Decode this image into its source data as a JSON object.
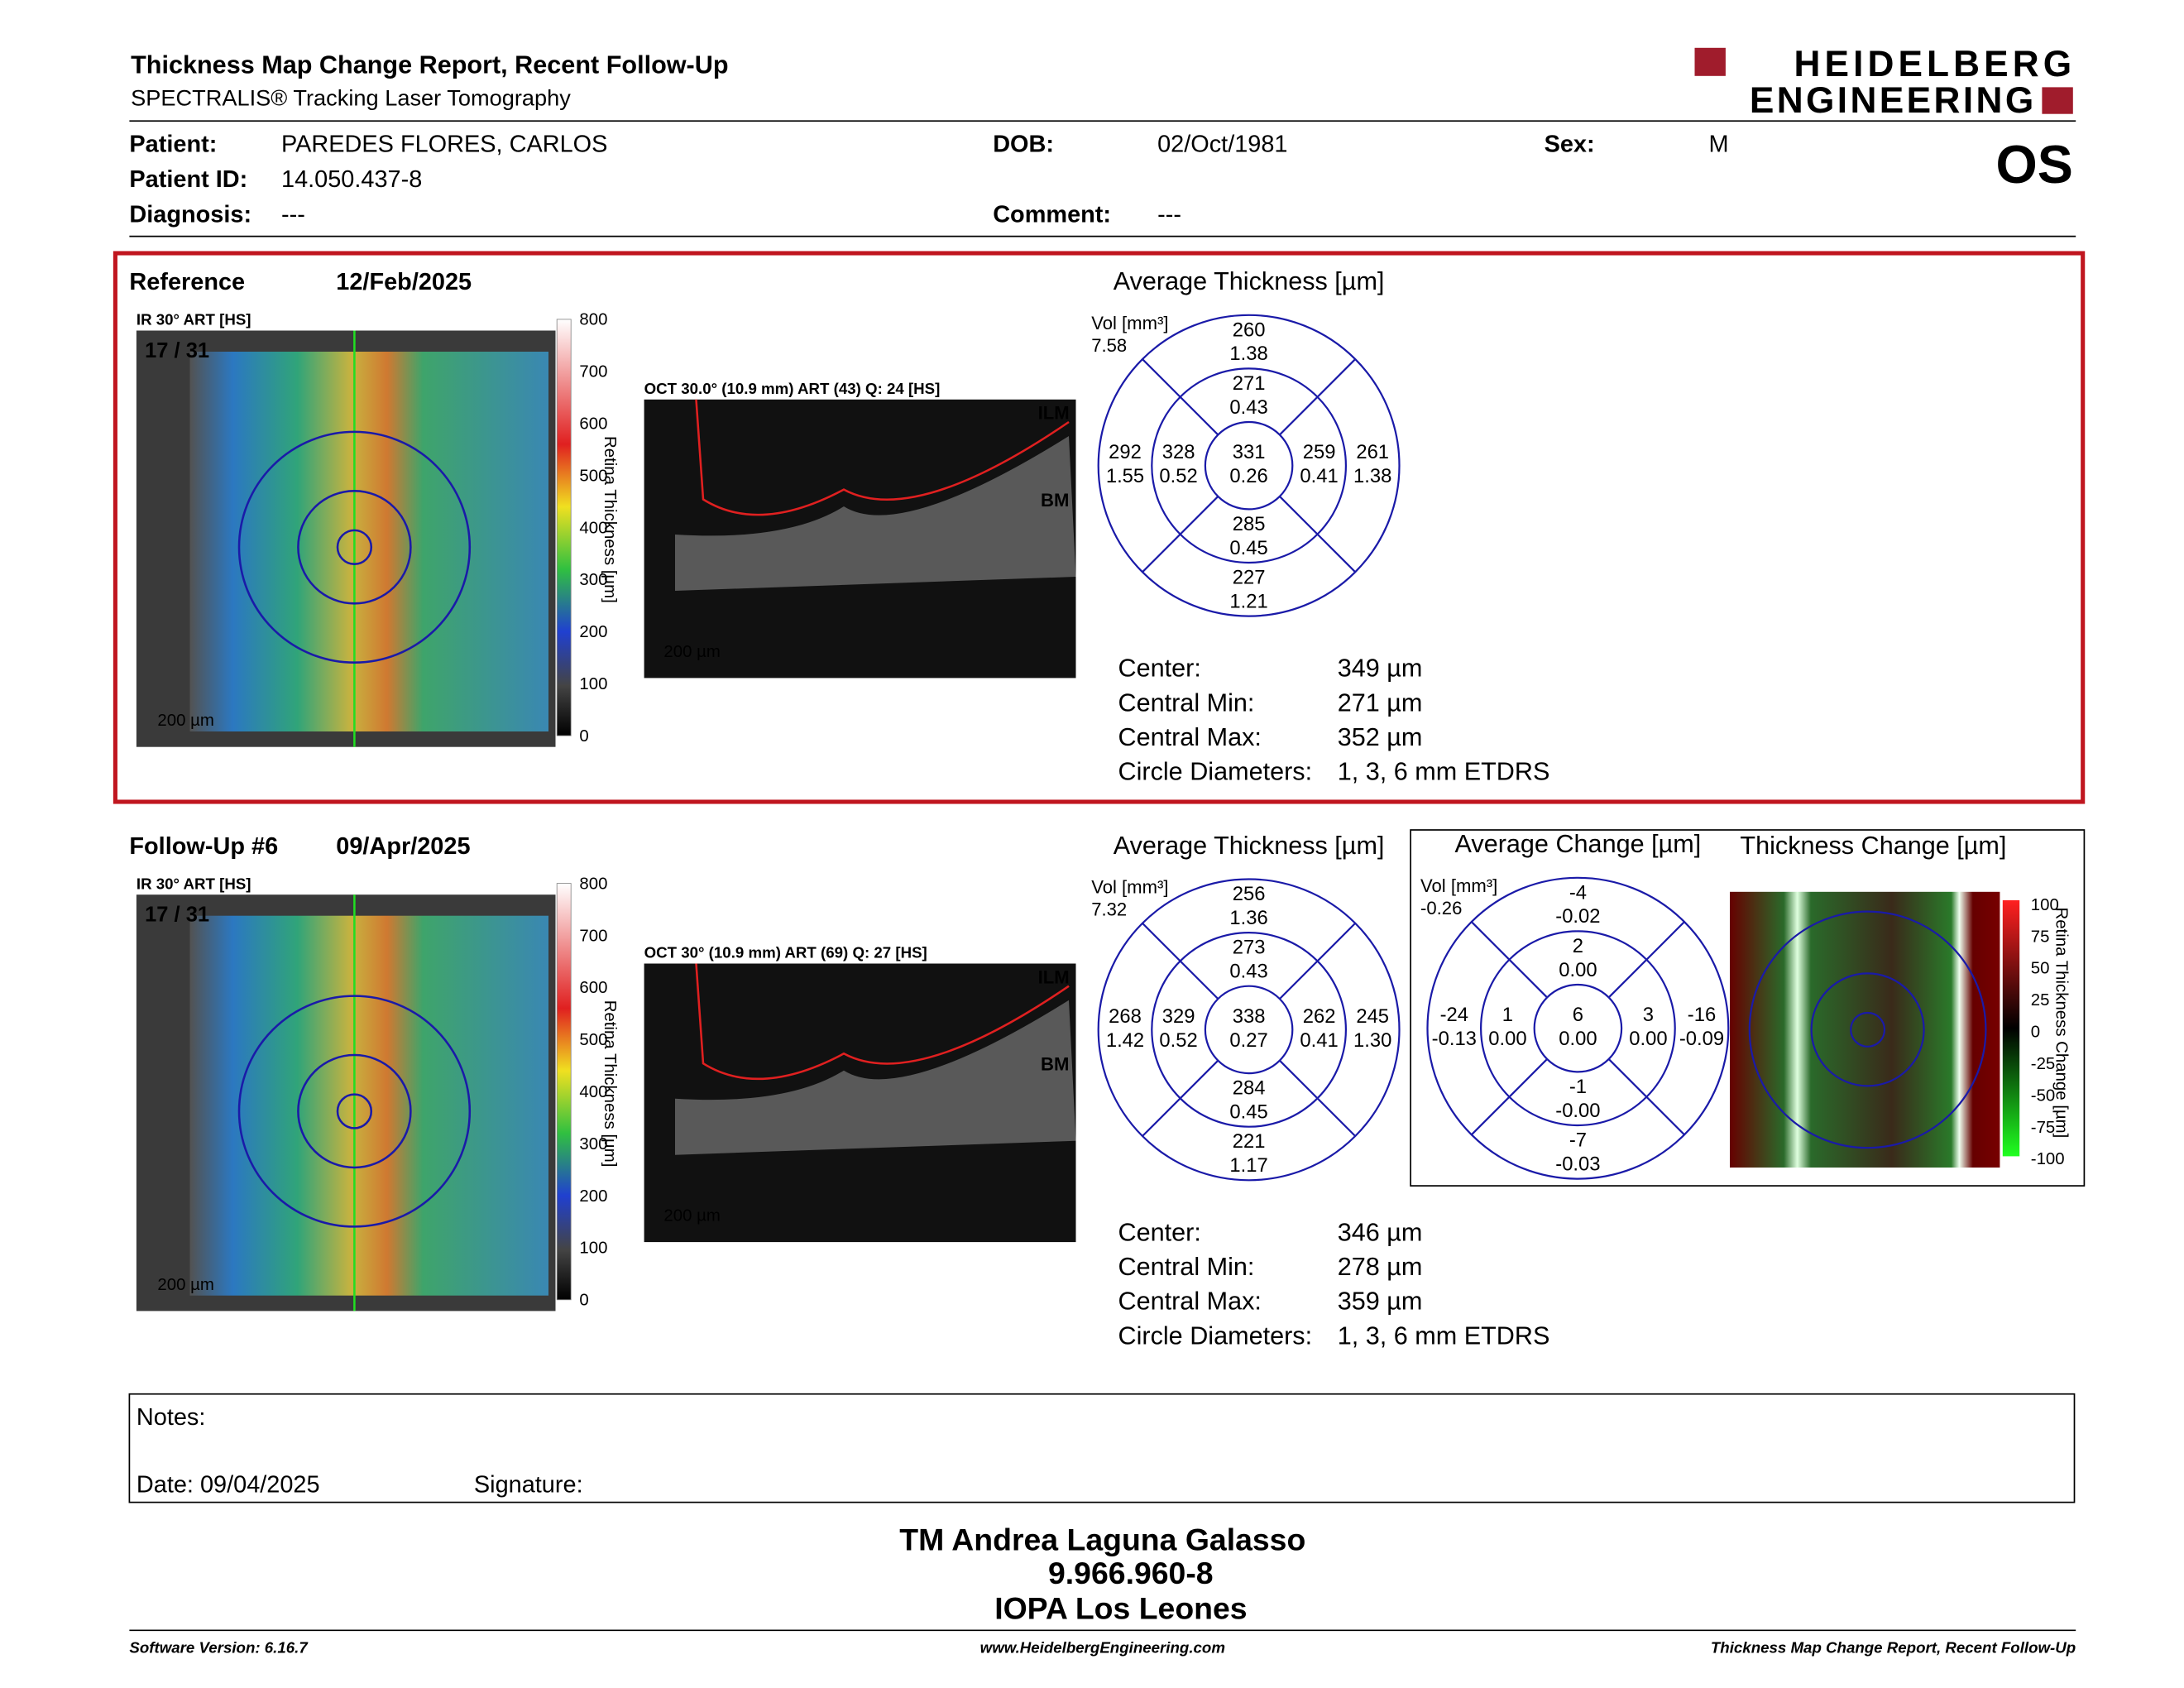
{
  "header": {
    "title": "Thickness Map Change Report, Recent Follow-Up",
    "subtitle": "SPECTRALIS® Tracking Laser Tomography",
    "logo_line1": "HEIDELBERG",
    "logo_line2": "ENGINEERING",
    "eye": "OS"
  },
  "patient": [
    {
      "label": "Patient:",
      "value": "PAREDES FLORES, CARLOS"
    },
    {
      "label": "Patient ID:",
      "value": "14.050.437-8"
    },
    {
      "label": "Diagnosis:",
      "value": "---"
    },
    {
      "label": "DOB:",
      "value": "02/Oct/1981"
    },
    {
      "label": "Comment:",
      "value": "---"
    },
    {
      "label": "Sex:",
      "value": "M"
    }
  ],
  "exams": [
    {
      "heading": "Reference",
      "date": "12/Feb/2025",
      "fundus_label": "IR 30° ART [HS]",
      "frame": "17 / 31",
      "scale_bar": "200 µm",
      "colorbar_ticks": [
        "800",
        "700",
        "600",
        "500",
        "400",
        "300",
        "200",
        "100",
        "0"
      ],
      "colorbar_title": "Retina Thickness [µm]",
      "oct_label": "OCT 30.0° (10.9 mm) ART (43) Q: 24 [HS]",
      "oct_scale": "200 µm",
      "ilm": "ILM",
      "bm": "BM",
      "grid": {
        "title": "Average Thickness [µm]",
        "vol_label": "Vol [mm³]",
        "vol": "7.58",
        "sectors": [
          {
            "thickness": "260",
            "volume": "1.38"
          },
          {
            "thickness": "271",
            "volume": "0.43"
          },
          {
            "thickness": "292",
            "volume": "1.55"
          },
          {
            "thickness": "328",
            "volume": "0.52"
          },
          {
            "thickness": "331",
            "volume": "0.26"
          },
          {
            "thickness": "259",
            "volume": "0.41"
          },
          {
            "thickness": "261",
            "volume": "1.38"
          },
          {
            "thickness": "285",
            "volume": "0.45"
          },
          {
            "thickness": "227",
            "volume": "1.21"
          }
        ]
      },
      "stats": [
        {
          "label": "Center:",
          "value": "349 µm"
        },
        {
          "label": "Central Min:",
          "value": "271 µm"
        },
        {
          "label": "Central Max:",
          "value": "352 µm"
        },
        {
          "label": "Circle Diameters:",
          "value": "1, 3, 6 mm ETDRS"
        }
      ]
    },
    {
      "heading": "Follow-Up #6",
      "date": "09/Apr/2025",
      "fundus_label": "IR 30° ART [HS]",
      "frame": "17 / 31",
      "scale_bar": "200 µm",
      "colorbar_ticks": [
        "800",
        "700",
        "600",
        "500",
        "400",
        "300",
        "200",
        "100",
        "0"
      ],
      "colorbar_title": "Retina Thickness [µm]",
      "oct_label": "OCT 30° (10.9 mm) ART (69) Q: 27 [HS]",
      "oct_scale": "200 µm",
      "ilm": "ILM",
      "bm": "BM",
      "grid": {
        "title": "Average Thickness [µm]",
        "vol_label": "Vol [mm³]",
        "vol": "7.32",
        "sectors": [
          {
            "thickness": "256",
            "volume": "1.36"
          },
          {
            "thickness": "273",
            "volume": "0.43"
          },
          {
            "thickness": "268",
            "volume": "1.42"
          },
          {
            "thickness": "329",
            "volume": "0.52"
          },
          {
            "thickness": "338",
            "volume": "0.27"
          },
          {
            "thickness": "262",
            "volume": "0.41"
          },
          {
            "thickness": "245",
            "volume": "1.30"
          },
          {
            "thickness": "284",
            "volume": "0.45"
          },
          {
            "thickness": "221",
            "volume": "1.17"
          }
        ]
      },
      "stats": [
        {
          "label": "Center:",
          "value": "346 µm"
        },
        {
          "label": "Central Min:",
          "value": "278 µm"
        },
        {
          "label": "Central Max:",
          "value": "359 µm"
        },
        {
          "label": "Circle Diameters:",
          "value": "1, 3, 6 mm ETDRS"
        }
      ]
    }
  ],
  "change": {
    "grid": {
      "title": "Average Change [µm]",
      "vol_label": "Vol [mm³]",
      "vol": "-0.26",
      "sectors": [
        {
          "thickness": "-4",
          "volume": "-0.02"
        },
        {
          "thickness": "2",
          "volume": "0.00"
        },
        {
          "thickness": "-24",
          "volume": "-0.13"
        },
        {
          "thickness": "1",
          "volume": "0.00"
        },
        {
          "thickness": "6",
          "volume": "0.00"
        },
        {
          "thickness": "3",
          "volume": "0.00"
        },
        {
          "thickness": "-16",
          "volume": "-0.09"
        },
        {
          "thickness": "-1",
          "volume": "-0.00"
        },
        {
          "thickness": "-7",
          "volume": "-0.03"
        }
      ]
    },
    "map_title": "Thickness Change [µm]",
    "colorbar_ticks": [
      "100",
      "75",
      "50",
      "25",
      "0",
      "-25",
      "-50",
      "-75",
      "-100"
    ],
    "colorbar_title": "Retina Thickness Change [µm]"
  },
  "notes": {
    "label": "Notes:",
    "date": "Date: 09/04/2025",
    "signature": "Signature:"
  },
  "signature": {
    "name": "TM Andrea Laguna Galasso",
    "id": "9.966.960-8",
    "institution": "IOPA Los Leones"
  },
  "footer": {
    "left": "Software Version: 6.16.7",
    "center": "www.HeidelbergEngineering.com",
    "right": "Thickness Map Change Report, Recent Follow-Up"
  }
}
